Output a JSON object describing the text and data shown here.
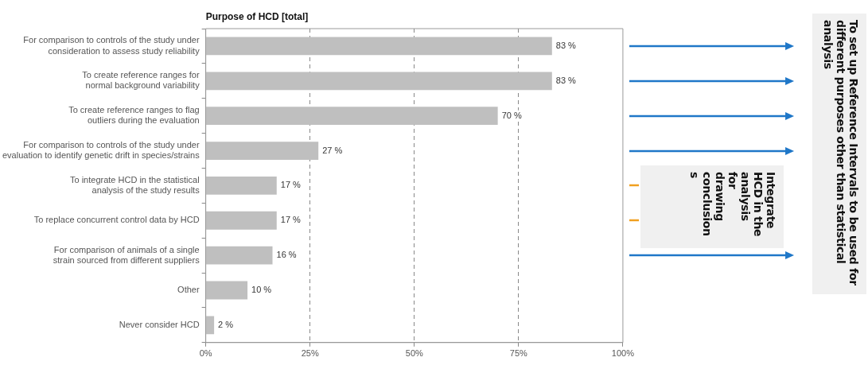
{
  "chart_data": {
    "type": "bar",
    "orientation": "horizontal",
    "title": "Purpose of HCD [total]",
    "categories": [
      "For comparison to controls of the study under consideration to assess study reliability",
      "To create reference ranges for normal background variability",
      "To create reference ranges to flag outliers during the evaluation",
      "For comparison to controls of the study under evaluation to identify genetic drift in species/strains",
      "To integrate HCD in the statistical analysis of the study results",
      "To replace concurrent control data by HCD",
      "For comparison of animals of a single strain sourced from different suppliers",
      "Other",
      "Never consider HCD"
    ],
    "values": [
      83,
      83,
      70,
      27,
      17,
      17,
      16,
      10,
      2
    ],
    "value_labels": [
      "83 %",
      "83 %",
      "70 %",
      "27 %",
      "17 %",
      "17 %",
      "16 %",
      "10 %",
      "2 %"
    ],
    "color": "#bfbfbf",
    "xlim": [
      0,
      100
    ],
    "xticks": [
      {
        "value": 0,
        "label": "0%"
      },
      {
        "value": 25,
        "label": "25%"
      },
      {
        "value": 50,
        "label": "50%"
      },
      {
        "value": 75,
        "label": "75%"
      },
      {
        "value": 100,
        "label": "100%"
      }
    ],
    "grid": "x",
    "annotations": [
      "Integrate HCD in the analysis for drawing conclusions",
      "To set up Reference Intervals to be used for different purposes other than statistical analysis"
    ]
  }
}
